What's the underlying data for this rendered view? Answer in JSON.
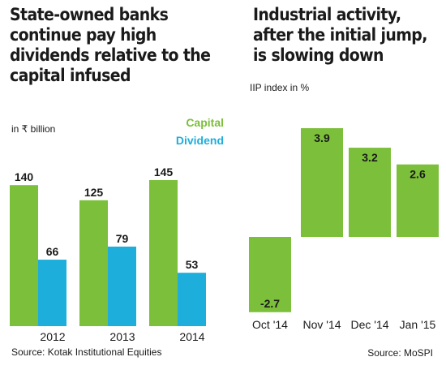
{
  "colors": {
    "capital": "#7bbf3a",
    "dividend": "#1eaedb",
    "iip": "#7bbf3a",
    "text": "#1a1a1a"
  },
  "left_panel": {
    "title": "State-owned banks continue pay high dividends relative to the capital infused",
    "unit": "in ₹ billion",
    "legend": {
      "capital": "Capital",
      "dividend": "Dividend"
    },
    "source": "Source: Kotak Institutional Equities"
  },
  "right_panel": {
    "title": "Industrial activity, after the initial jump, is slowing down",
    "unit": "IIP index in %",
    "source": "Source: MoSPI"
  },
  "chart_data": [
    {
      "type": "bar",
      "title": "State-owned banks continue pay high dividends relative to the capital infused",
      "ylabel": "in ₹ billion",
      "categories": [
        "2012",
        "2013",
        "2014"
      ],
      "series": [
        {
          "name": "Capital",
          "values": [
            140,
            125,
            145
          ]
        },
        {
          "name": "Dividend",
          "values": [
            66,
            79,
            53
          ]
        }
      ],
      "ylim": [
        0,
        145
      ],
      "grid": false,
      "legend": "top-right"
    },
    {
      "type": "bar",
      "title": "Industrial activity, after the initial jump, is slowing down",
      "ylabel": "IIP index in %",
      "categories": [
        "Oct '14",
        "Nov '14",
        "Dec '14",
        "Jan '15"
      ],
      "values": [
        -2.7,
        3.9,
        3.2,
        2.6
      ],
      "ylim": [
        -2.7,
        3.9
      ],
      "grid": false
    }
  ]
}
